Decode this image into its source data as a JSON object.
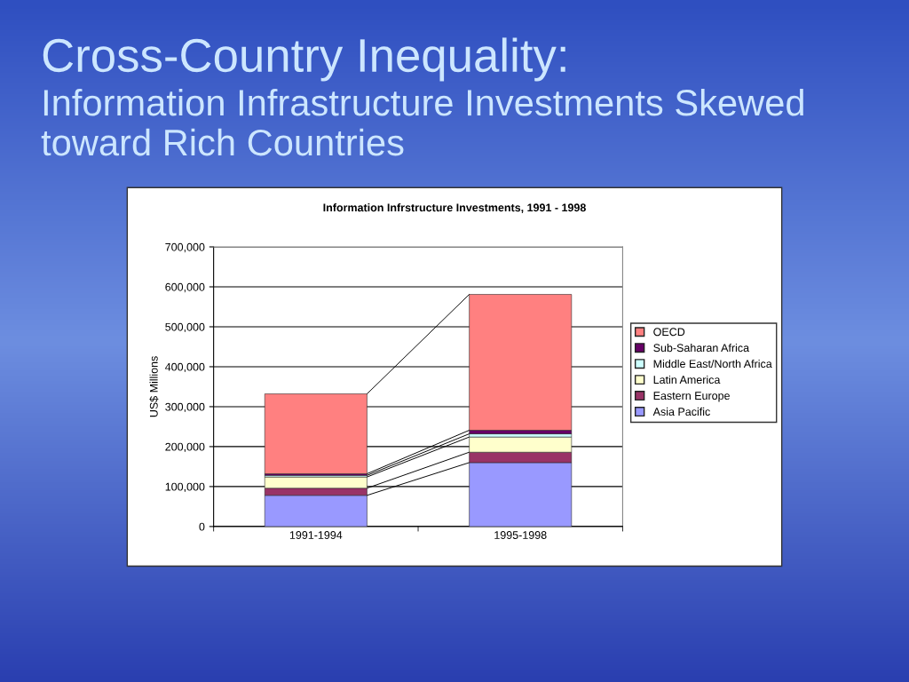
{
  "chart_data": {
    "type": "bar",
    "stacked": true,
    "title": "Cross-Country Inequality:",
    "subtitle": "Information Infrastructure Investments Skewed toward Rich Countries",
    "annotations": [
      "Information Infrstructure Investments, 1991 - 1998"
    ],
    "categories": [
      "1991-1994",
      "1995-1998"
    ],
    "series": [
      {
        "name": "Asia Pacific",
        "color": "#9999ff",
        "values": [
          78000,
          160000
        ]
      },
      {
        "name": "Eastern Europe",
        "color": "#993366",
        "values": [
          18000,
          26000
        ]
      },
      {
        "name": "Latin America",
        "color": "#ffffcc",
        "values": [
          28000,
          38000
        ]
      },
      {
        "name": "Middle East/North Africa",
        "color": "#ccffff",
        "values": [
          4000,
          8000
        ]
      },
      {
        "name": "Sub-Saharan Africa",
        "color": "#660066",
        "values": [
          4000,
          9000
        ]
      },
      {
        "name": "OECD",
        "color": "#ff8080",
        "values": [
          200000,
          340000
        ]
      }
    ],
    "ylabel": "US$ Millions",
    "ylim": [
      0,
      700000
    ],
    "yticks": [
      {
        "value": 0,
        "label": "0"
      },
      {
        "value": 100000,
        "label": "100,000"
      },
      {
        "value": 200000,
        "label": "200,000"
      },
      {
        "value": 300000,
        "label": "300,000"
      },
      {
        "value": 400000,
        "label": "400,000"
      },
      {
        "value": 500000,
        "label": "500,000"
      },
      {
        "value": 600000,
        "label": "600,000"
      },
      {
        "value": 700000,
        "label": "700,000"
      }
    ],
    "grid": "y",
    "legend": "right"
  }
}
